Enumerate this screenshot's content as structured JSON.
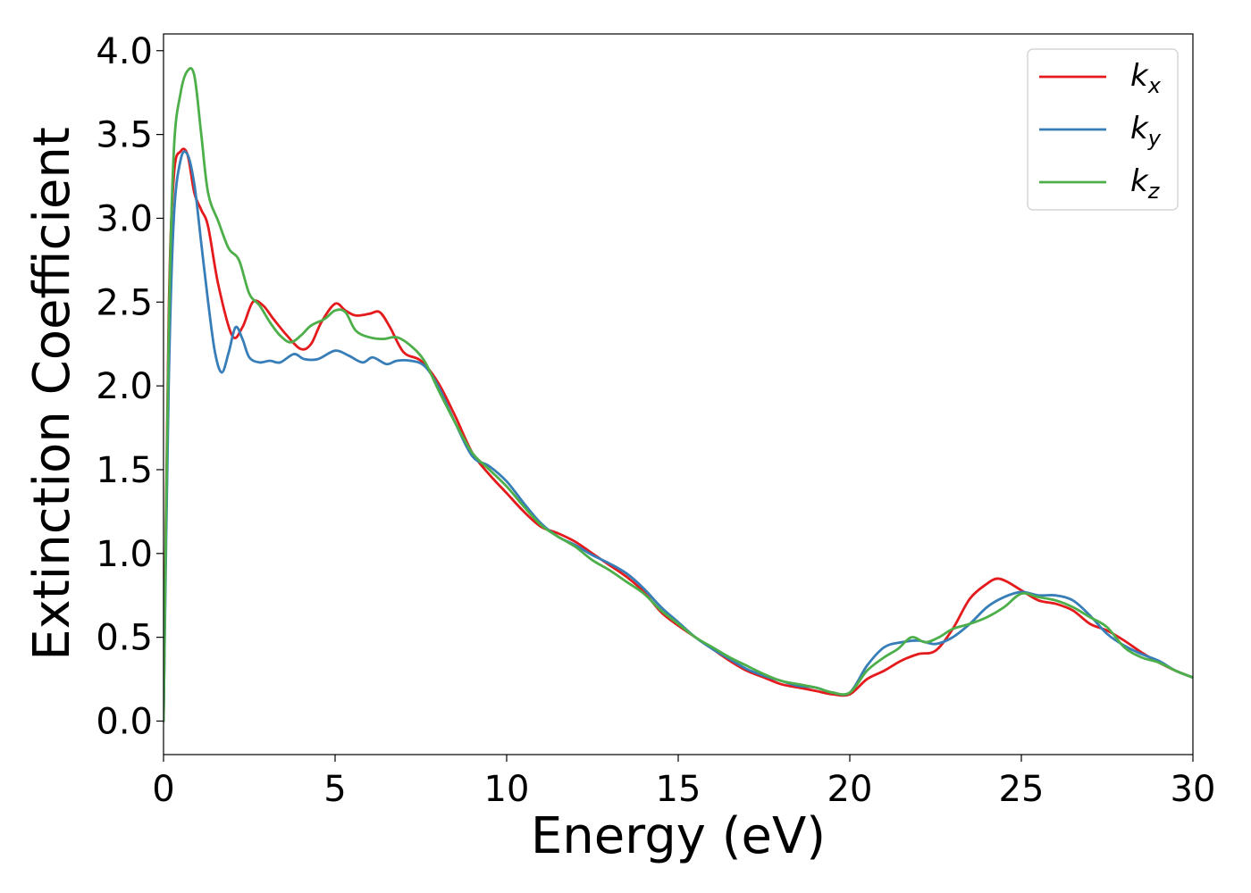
{
  "chart_data": {
    "type": "line",
    "xlabel": "Energy (eV)",
    "ylabel": "Extinction Coefficient",
    "xlim": [
      0,
      30
    ],
    "ylim": [
      -0.2,
      4.1
    ],
    "xticks": [
      0,
      5,
      10,
      15,
      20,
      25,
      30
    ],
    "yticks": [
      0.0,
      0.5,
      1.0,
      1.5,
      2.0,
      2.5,
      3.0,
      3.5,
      4.0
    ],
    "ytick_labels": [
      "0.0",
      "0.5",
      "1.0",
      "1.5",
      "2.0",
      "2.5",
      "3.0",
      "3.5",
      "4.0"
    ],
    "grid": false,
    "legend_position": "top-right",
    "series": [
      {
        "name": "k",
        "subscript": "x",
        "color": "#e41a1c",
        "x": [
          0,
          0.15,
          0.3,
          0.5,
          0.7,
          0.9,
          1.1,
          1.3,
          1.6,
          2.0,
          2.3,
          2.6,
          2.9,
          3.2,
          3.6,
          4.0,
          4.3,
          4.6,
          5.0,
          5.3,
          5.6,
          6.0,
          6.3,
          6.6,
          7.0,
          7.5,
          8.0,
          8.5,
          9.0,
          9.5,
          10.0,
          10.5,
          11.0,
          11.5,
          12.0,
          12.5,
          13.0,
          13.5,
          14.0,
          14.5,
          15.0,
          15.5,
          16.0,
          16.5,
          17.0,
          17.5,
          18.0,
          18.5,
          19.0,
          19.5,
          20.0,
          20.5,
          21.0,
          21.5,
          22.0,
          22.5,
          23.0,
          23.5,
          24.0,
          24.3,
          24.6,
          25.0,
          25.5,
          26.0,
          26.5,
          27.0,
          27.5,
          28.0,
          28.5,
          29.0,
          29.5,
          30.0
        ],
        "y": [
          0.0,
          2.4,
          3.25,
          3.4,
          3.38,
          3.15,
          3.05,
          2.95,
          2.6,
          2.3,
          2.35,
          2.5,
          2.48,
          2.4,
          2.3,
          2.22,
          2.25,
          2.38,
          2.49,
          2.45,
          2.42,
          2.43,
          2.44,
          2.35,
          2.2,
          2.15,
          2.02,
          1.82,
          1.6,
          1.47,
          1.36,
          1.25,
          1.16,
          1.12,
          1.07,
          1.0,
          0.93,
          0.86,
          0.77,
          0.65,
          0.57,
          0.5,
          0.43,
          0.36,
          0.3,
          0.26,
          0.22,
          0.2,
          0.18,
          0.16,
          0.16,
          0.25,
          0.3,
          0.36,
          0.4,
          0.42,
          0.55,
          0.73,
          0.82,
          0.85,
          0.83,
          0.78,
          0.72,
          0.7,
          0.66,
          0.58,
          0.54,
          0.48,
          0.41,
          0.35,
          0.3,
          0.26
        ]
      },
      {
        "name": "k",
        "subscript": "y",
        "color": "#377eb8",
        "x": [
          0,
          0.15,
          0.3,
          0.5,
          0.7,
          0.9,
          1.1,
          1.3,
          1.5,
          1.7,
          1.9,
          2.1,
          2.3,
          2.5,
          2.8,
          3.1,
          3.4,
          3.8,
          4.1,
          4.5,
          5.0,
          5.4,
          5.8,
          6.1,
          6.5,
          6.8,
          7.2,
          7.6,
          8.0,
          8.5,
          9.0,
          9.5,
          10.0,
          10.5,
          11.0,
          11.5,
          12.0,
          12.5,
          13.0,
          13.5,
          14.0,
          14.5,
          15.0,
          15.5,
          16.0,
          16.5,
          17.0,
          17.5,
          18.0,
          18.5,
          19.0,
          19.5,
          20.0,
          20.5,
          21.0,
          21.5,
          22.0,
          22.5,
          23.0,
          23.5,
          24.0,
          24.5,
          25.0,
          25.5,
          26.0,
          26.5,
          27.0,
          27.5,
          28.0,
          28.5,
          29.0,
          29.5,
          30.0
        ],
        "y": [
          0.0,
          2.0,
          3.0,
          3.35,
          3.38,
          3.2,
          2.85,
          2.5,
          2.2,
          2.08,
          2.2,
          2.35,
          2.28,
          2.17,
          2.14,
          2.15,
          2.14,
          2.19,
          2.16,
          2.16,
          2.21,
          2.18,
          2.14,
          2.17,
          2.13,
          2.15,
          2.15,
          2.12,
          2.0,
          1.78,
          1.58,
          1.52,
          1.43,
          1.3,
          1.18,
          1.1,
          1.05,
          0.99,
          0.94,
          0.88,
          0.79,
          0.68,
          0.59,
          0.5,
          0.43,
          0.37,
          0.31,
          0.27,
          0.24,
          0.21,
          0.2,
          0.17,
          0.17,
          0.33,
          0.44,
          0.47,
          0.48,
          0.46,
          0.5,
          0.58,
          0.68,
          0.74,
          0.77,
          0.75,
          0.75,
          0.72,
          0.63,
          0.52,
          0.45,
          0.4,
          0.36,
          0.3,
          0.26
        ]
      },
      {
        "name": "k",
        "subscript": "z",
        "color": "#4daf4a",
        "x": [
          0,
          0.15,
          0.3,
          0.5,
          0.7,
          0.9,
          1.1,
          1.3,
          1.6,
          1.9,
          2.2,
          2.5,
          2.8,
          3.1,
          3.4,
          3.7,
          4.0,
          4.3,
          4.7,
          5.0,
          5.3,
          5.6,
          6.0,
          6.4,
          6.8,
          7.2,
          7.6,
          8.0,
          8.5,
          9.0,
          9.5,
          10.0,
          10.5,
          11.0,
          11.5,
          12.0,
          12.5,
          13.0,
          13.5,
          14.0,
          14.5,
          15.0,
          15.5,
          16.0,
          16.5,
          17.0,
          17.5,
          18.0,
          18.5,
          19.0,
          19.5,
          20.0,
          20.5,
          21.0,
          21.4,
          21.8,
          22.2,
          22.6,
          23.0,
          23.5,
          24.0,
          24.5,
          25.0,
          25.5,
          26.0,
          26.5,
          27.0,
          27.5,
          28.0,
          28.5,
          29.0,
          29.5,
          30.0
        ],
        "y": [
          0.0,
          2.3,
          3.4,
          3.75,
          3.88,
          3.85,
          3.5,
          3.15,
          2.98,
          2.82,
          2.75,
          2.55,
          2.48,
          2.38,
          2.3,
          2.26,
          2.3,
          2.36,
          2.4,
          2.45,
          2.44,
          2.33,
          2.29,
          2.28,
          2.29,
          2.24,
          2.15,
          1.98,
          1.78,
          1.6,
          1.5,
          1.4,
          1.28,
          1.17,
          1.1,
          1.04,
          0.96,
          0.9,
          0.83,
          0.76,
          0.66,
          0.58,
          0.5,
          0.44,
          0.38,
          0.33,
          0.28,
          0.24,
          0.22,
          0.2,
          0.17,
          0.17,
          0.3,
          0.38,
          0.43,
          0.5,
          0.47,
          0.5,
          0.55,
          0.58,
          0.62,
          0.68,
          0.76,
          0.74,
          0.72,
          0.68,
          0.62,
          0.56,
          0.44,
          0.38,
          0.35,
          0.3,
          0.26
        ]
      }
    ]
  }
}
